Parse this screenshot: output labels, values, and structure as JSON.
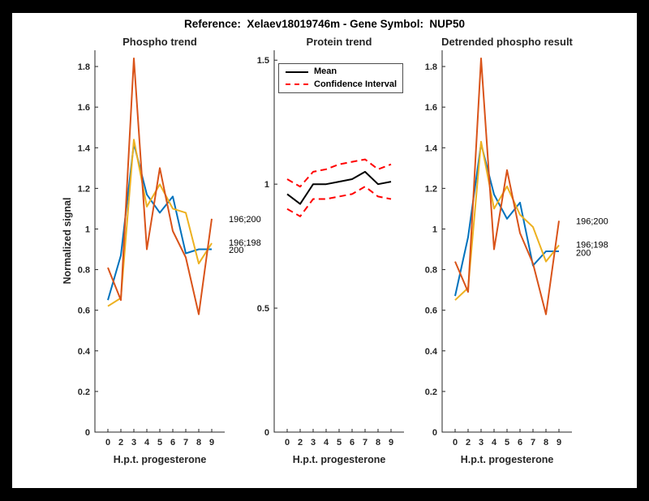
{
  "figure": {
    "title": "Reference:  Xelaev18019746m - Gene Symbol:  NUP50",
    "background_color": "#ffffff",
    "frame_color": "#000000"
  },
  "colors": {
    "blue_series": "#0072BD",
    "yellow_series": "#EDB120",
    "orange_series": "#D95319",
    "mean_line": "#000000",
    "confidence_interval": "#FF0000",
    "axis": "#262626"
  },
  "chart_data": [
    {
      "type": "line",
      "title": "Phospho trend",
      "xlabel": "H.p.t. progesterone",
      "ylabel": "Normalized signal",
      "categories": [
        "0",
        "2",
        "3",
        "4",
        "5",
        "6",
        "7",
        "8",
        "9"
      ],
      "ylim": [
        0,
        1.88
      ],
      "yticks": [
        0,
        0.2,
        0.4,
        0.6,
        0.8,
        1.0,
        1.2,
        1.4,
        1.6,
        1.8
      ],
      "ytick_labels": [
        "0",
        "0.2",
        "0.4",
        "0.6",
        "0.8",
        "1",
        "1.2",
        "1.4",
        "1.6",
        "1.8"
      ],
      "grid": false,
      "series": [
        {
          "name": "200",
          "key": "line-200",
          "color": "#0072BD",
          "style": "solid",
          "values": [
            0.65,
            0.87,
            1.42,
            1.17,
            1.08,
            1.16,
            0.88,
            0.9,
            0.9
          ]
        },
        {
          "name": "196;198",
          "key": "line-196-198",
          "color": "#EDB120",
          "style": "solid",
          "values": [
            0.62,
            0.66,
            1.44,
            1.11,
            1.22,
            1.1,
            1.08,
            0.83,
            0.93
          ]
        },
        {
          "name": "196;200",
          "key": "line-196-200",
          "color": "#D95319",
          "style": "solid",
          "values": [
            0.81,
            0.65,
            1.84,
            0.9,
            1.3,
            0.99,
            0.86,
            0.58,
            1.05
          ]
        }
      ],
      "end_labels": [
        {
          "text": "196;200",
          "v": 1.05
        },
        {
          "text": "196;198",
          "v": 0.935
        },
        {
          "text": "200",
          "v": 0.898
        }
      ]
    },
    {
      "type": "line",
      "title": "Protein trend",
      "xlabel": "H.p.t. progesterone",
      "ylabel": "",
      "categories": [
        "0",
        "2",
        "3",
        "4",
        "5",
        "6",
        "7",
        "8",
        "9"
      ],
      "ylim": [
        0,
        1.54
      ],
      "yticks": [
        0,
        0.5,
        1.0,
        1.5
      ],
      "ytick_labels": [
        "0",
        "0.5",
        "1",
        "1.5"
      ],
      "grid": false,
      "legend": {
        "position": "top-left",
        "entries": [
          {
            "label": "Mean",
            "style": "solid",
            "color": "#000000"
          },
          {
            "label": "Confidence Interval",
            "style": "dashed",
            "color": "#FF0000"
          }
        ]
      },
      "series": [
        {
          "name": "Mean",
          "key": "mean-line",
          "color": "#000000",
          "style": "solid",
          "values": [
            0.96,
            0.92,
            1.0,
            1.0,
            1.01,
            1.02,
            1.05,
            1.0,
            1.01
          ]
        },
        {
          "name": "Confidence Interval upper",
          "key": "ci-upper-line",
          "color": "#FF0000",
          "style": "dashed",
          "values": [
            1.02,
            0.99,
            1.05,
            1.06,
            1.08,
            1.09,
            1.1,
            1.06,
            1.08
          ]
        },
        {
          "name": "Confidence Interval lower",
          "key": "ci-lower-line",
          "color": "#FF0000",
          "style": "dashed",
          "values": [
            0.9,
            0.87,
            0.94,
            0.94,
            0.95,
            0.96,
            0.99,
            0.95,
            0.94
          ]
        }
      ],
      "end_labels": []
    },
    {
      "type": "line",
      "title": "Detrended phospho result",
      "xlabel": "H.p.t. progesterone",
      "ylabel": "",
      "categories": [
        "0",
        "2",
        "3",
        "4",
        "5",
        "6",
        "7",
        "8",
        "9"
      ],
      "ylim": [
        0,
        1.88
      ],
      "yticks": [
        0,
        0.2,
        0.4,
        0.6,
        0.8,
        1.0,
        1.2,
        1.4,
        1.6,
        1.8
      ],
      "ytick_labels": [
        "0",
        "0.2",
        "0.4",
        "0.6",
        "0.8",
        "1",
        "1.2",
        "1.4",
        "1.6",
        "1.8"
      ],
      "grid": false,
      "series": [
        {
          "name": "200",
          "key": "line-200",
          "color": "#0072BD",
          "style": "solid",
          "values": [
            0.67,
            0.96,
            1.42,
            1.17,
            1.05,
            1.13,
            0.82,
            0.89,
            0.89
          ]
        },
        {
          "name": "196;198",
          "key": "line-196-198",
          "color": "#EDB120",
          "style": "solid",
          "values": [
            0.65,
            0.71,
            1.43,
            1.1,
            1.21,
            1.07,
            1.01,
            0.84,
            0.92
          ]
        },
        {
          "name": "196;200",
          "key": "line-196-200",
          "color": "#D95319",
          "style": "solid",
          "values": [
            0.84,
            0.69,
            1.84,
            0.9,
            1.29,
            0.98,
            0.83,
            0.58,
            1.04
          ]
        }
      ],
      "end_labels": [
        {
          "text": "196;200",
          "v": 1.04
        },
        {
          "text": "196;198",
          "v": 0.925
        },
        {
          "text": "200",
          "v": 0.885
        }
      ]
    }
  ]
}
